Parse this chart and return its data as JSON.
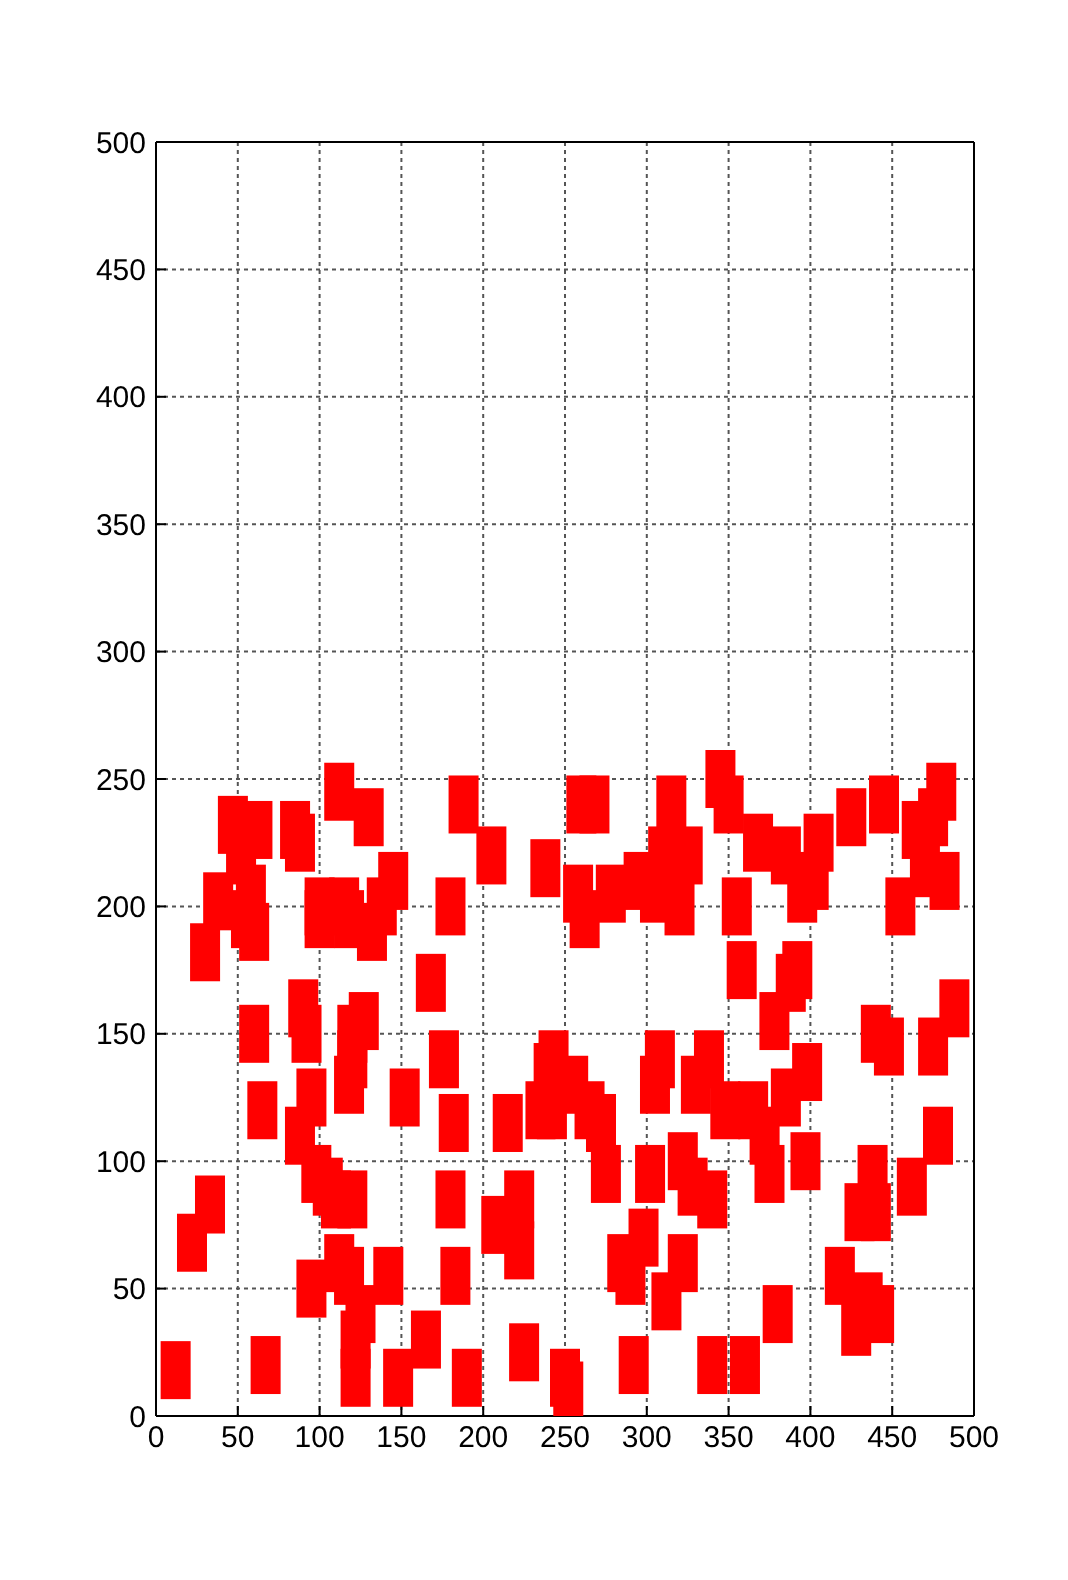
{
  "chart_data": {
    "type": "scatter",
    "marker": "square",
    "grid": true,
    "xlim": [
      0,
      500
    ],
    "ylim": [
      0,
      500
    ],
    "xticks": [
      0,
      50,
      100,
      150,
      200,
      250,
      300,
      350,
      400,
      450,
      500
    ],
    "yticks": [
      0,
      50,
      100,
      150,
      200,
      250,
      300,
      350,
      400,
      450,
      500
    ],
    "series": [
      {
        "color": "#ff0000",
        "x": [
          12,
          22,
          33,
          30,
          38,
          47,
          52,
          55,
          58,
          60,
          62,
          60,
          65,
          67,
          85,
          88,
          88,
          90,
          92,
          95,
          95,
          98,
          100,
          100,
          105,
          110,
          112,
          112,
          115,
          118,
          118,
          120,
          120,
          120,
          118,
          122,
          122,
          125,
          127,
          130,
          132,
          138,
          142,
          145,
          148,
          152,
          165,
          168,
          176,
          180,
          182,
          180,
          183,
          188,
          190,
          205,
          208,
          215,
          222,
          222,
          225,
          235,
          238,
          240,
          242,
          243,
          250,
          252,
          255,
          258,
          260,
          262,
          265,
          268,
          272,
          275,
          278,
          285,
          290,
          292,
          295,
          298,
          302,
          305,
          305,
          308,
          310,
          312,
          315,
          320,
          322,
          322,
          325,
          328,
          330,
          338,
          340,
          340,
          345,
          348,
          350,
          355,
          358,
          360,
          365,
          368,
          372,
          375,
          378,
          380,
          385,
          385,
          388,
          392,
          395,
          397,
          398,
          402,
          405,
          418,
          425,
          428,
          430,
          435,
          438,
          440,
          440,
          445,
          442,
          448,
          455,
          462,
          465,
          470,
          475,
          475,
          478,
          480,
          482,
          488
        ],
        "values": [
          18,
          68,
          83,
          182,
          202,
          232,
          220,
          195,
          205,
          190,
          230,
          150,
          120,
          20,
          230,
          225,
          110,
          160,
          150,
          125,
          50,
          95,
          195,
          200,
          90,
          85,
          245,
          60,
          200,
          195,
          130,
          140,
          150,
          85,
          55,
          30,
          15,
          40,
          155,
          235,
          190,
          200,
          55,
          210,
          15,
          125,
          30,
          170,
          140,
          200,
          115,
          85,
          55,
          240,
          15,
          220,
          75,
          115,
          85,
          65,
          25,
          120,
          215,
          135,
          120,
          140,
          15,
          10,
          130,
          205,
          240,
          195,
          120,
          240,
          115,
          95,
          205,
          60,
          55,
          20,
          210,
          70,
          95,
          205,
          130,
          140,
          220,
          45,
          240,
          200,
          100,
          60,
          220,
          90,
          130,
          140,
          85,
          20,
          250,
          120,
          240,
          200,
          175,
          20,
          120,
          225,
          110,
          95,
          155,
          40,
          220,
          125,
          170,
          175,
          205,
          100,
          135,
          210,
          225,
          55,
          235,
          35,
          80,
          45,
          95,
          150,
          80,
          240,
          40,
          145,
          200,
          90,
          230,
          215,
          235,
          145,
          110,
          245,
          210,
          160
        ]
      }
    ]
  }
}
